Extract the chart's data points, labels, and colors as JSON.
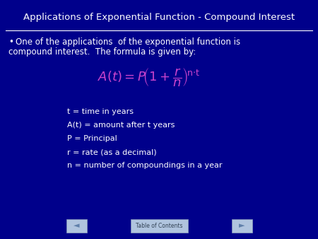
{
  "title": "Applications of Exponential Function - Compound Interest",
  "bg_color": "#00008B",
  "title_color": "#FFFFFF",
  "title_fontsize": 9.5,
  "bullet_color": "#FFFFFF",
  "bullet_fontsize": 8.5,
  "formula_color": "#CC44CC",
  "formula_fontsize": 13,
  "definitions": [
    "t = time in years",
    "A(t) = amount after t years",
    "P = Principal",
    "r = rate (as a decimal)",
    "n = number of compoundings in a year"
  ],
  "def_color": "#FFFFFF",
  "def_fontsize": 8.0,
  "line_color": "#FFFFFF",
  "toc_button_color": "#B0C4DE",
  "toc_text": "Table of Contents",
  "nav_arrow_color": "#B0C4DE",
  "nav_arrow_color_dark": "#6080AA"
}
